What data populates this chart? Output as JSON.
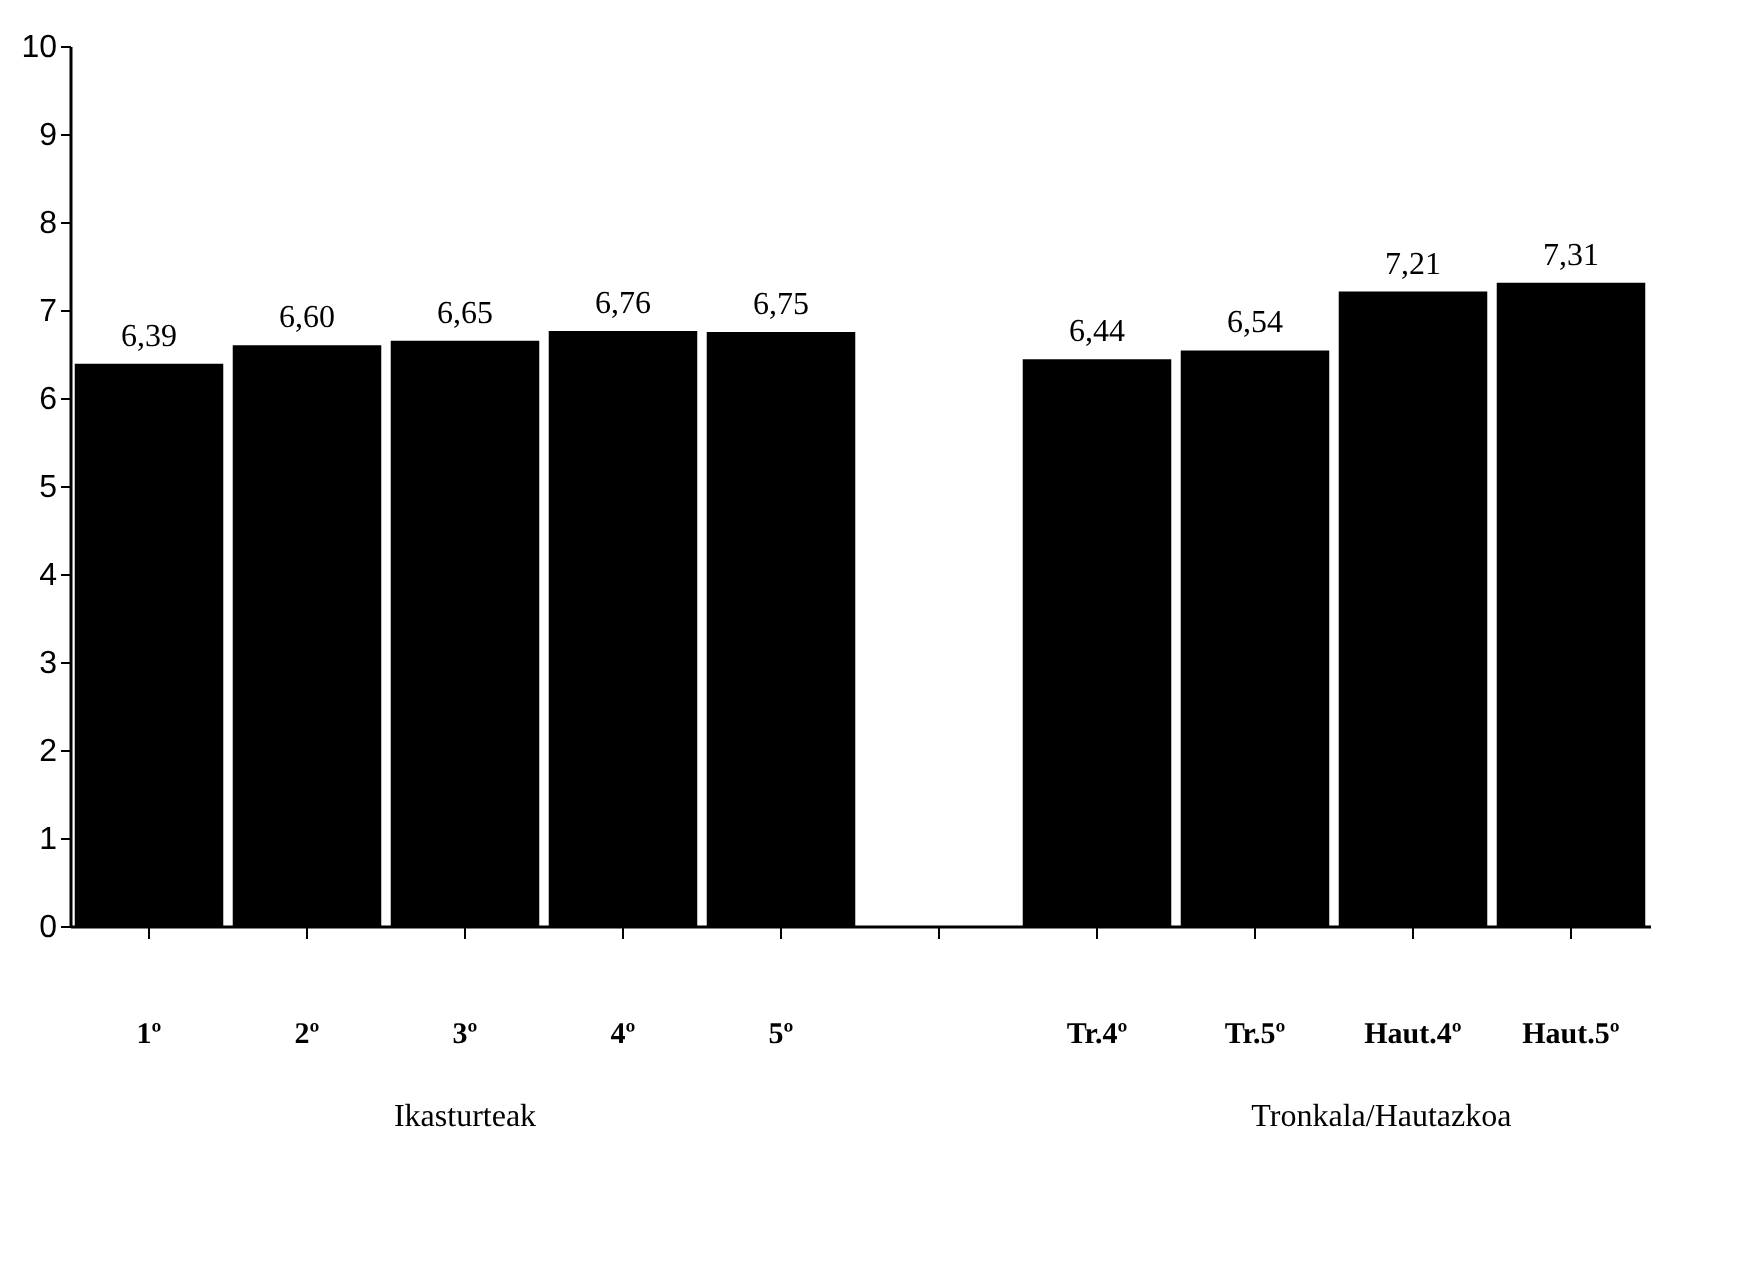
{
  "chart_data": {
    "type": "bar",
    "categories": [
      "1º",
      "2º",
      "3º",
      "4º",
      "5º",
      null,
      "Tr.4º",
      "Tr.5º",
      "Haut.4º",
      "Haut.5º"
    ],
    "values": [
      6.39,
      6.6,
      6.65,
      6.76,
      6.75,
      null,
      6.44,
      6.54,
      7.21,
      7.31
    ],
    "value_labels": [
      "6,39",
      "6,60",
      "6,65",
      "6,76",
      "6,75",
      null,
      "6,44",
      "6,54",
      "7,21",
      "7,31"
    ],
    "color": "#000000",
    "ylim": [
      0,
      10
    ],
    "yticks": [
      0,
      1,
      2,
      3,
      4,
      5,
      6,
      7,
      8,
      9,
      10
    ],
    "grid": false,
    "annotations": [
      "Ikasturteak",
      "Tronkala/Hautazkoa"
    ]
  }
}
